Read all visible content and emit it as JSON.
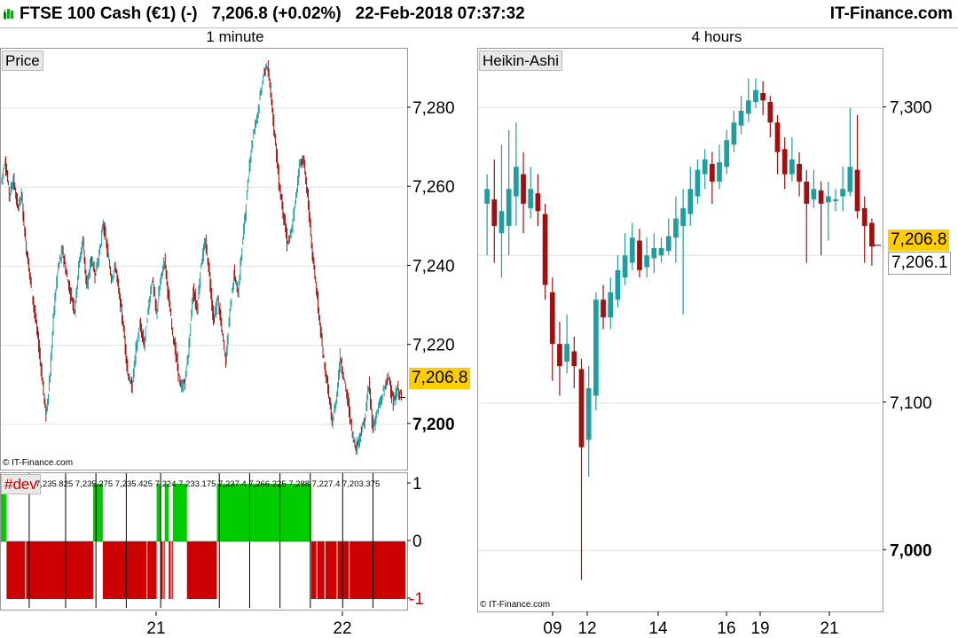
{
  "header": {
    "title": "FTSE 100 Cash (€1) (-)   7,206.8 (+0.02%)   22-Feb-2018 07:37:32",
    "brand": "IT-Finance.com"
  },
  "colors": {
    "up": "#1e9e9e",
    "down": "#a01010",
    "dev_up": "#00cc00",
    "dev_down": "#cc0000",
    "last_price": "#ffcc00"
  },
  "left_panel": {
    "timeframe": "1 minute",
    "price_label": "Price",
    "last_price": "7,206.8",
    "credit": "© IT-Finance.com",
    "indicator_label": "#dev",
    "indicator_ticks": [
      "1",
      "0",
      "-1"
    ],
    "indicator_values_text": "7,235.825  7,235.275  7,235.425  7,224  7,233.175  7,237.4  7,266.225  7,288  7,227.4  7,203.375"
  },
  "right_panel": {
    "timeframe": "4 hours",
    "chart_label": "Heikin-Ashi",
    "last_price": "7,206.8",
    "prev_price": "7,206.1",
    "credit": "© IT-Finance.com"
  },
  "chart_data": [
    {
      "type": "line",
      "panel": "1 minute",
      "title": "Price",
      "x_tick_labels": [
        "21",
        "22"
      ],
      "y_tick_labels": [
        "7,280",
        "7,260",
        "7,240",
        "7,220",
        "7,200"
      ],
      "ylim": [
        7189,
        7295
      ],
      "grid": true,
      "series": [
        {
          "values": [
            7261,
            7267,
            7258,
            7262,
            7255,
            7258,
            7246,
            7238,
            7230,
            7222,
            7212,
            7202,
            7213,
            7230,
            7240,
            7244,
            7238,
            7233,
            7229,
            7240,
            7247,
            7234,
            7242,
            7238,
            7243,
            7251,
            7244,
            7237,
            7240,
            7232,
            7224,
            7213,
            7209,
            7219,
            7225,
            7220,
            7229,
            7237,
            7228,
            7236,
            7242,
            7232,
            7223,
            7216,
            7209,
            7211,
            7220,
            7234,
            7229,
            7241,
            7246,
            7238,
            7226,
            7232,
            7224,
            7216,
            7229,
            7238,
            7233,
            7245,
            7256,
            7268,
            7275,
            7280,
            7287,
            7291,
            7284,
            7273,
            7261,
            7254,
            7246,
            7248,
            7256,
            7266,
            7267,
            7258,
            7245,
            7236,
            7225,
            7216,
            7209,
            7200,
            7206,
            7217,
            7211,
            7205,
            7197,
            7194,
            7198,
            7201,
            7210,
            7199,
            7203,
            7206,
            7210,
            7212,
            7205,
            7209,
            7207
          ]
        }
      ]
    },
    {
      "type": "bar",
      "panel": "1 minute",
      "title": "#dev",
      "y_tick_labels": [
        "1",
        "0",
        "-1"
      ],
      "ylim": [
        -1,
        1
      ],
      "x_tick_labels": [
        "21",
        "22"
      ],
      "segments": [
        {
          "from": 0.0,
          "to": 0.014,
          "value": 1
        },
        {
          "from": 0.014,
          "to": 0.228,
          "value": -1
        },
        {
          "from": 0.228,
          "to": 0.252,
          "value": 1
        },
        {
          "from": 0.252,
          "to": 0.385,
          "value": -1
        },
        {
          "from": 0.385,
          "to": 0.395,
          "value": 1
        },
        {
          "from": 0.395,
          "to": 0.405,
          "value": -1
        },
        {
          "from": 0.405,
          "to": 0.415,
          "value": 1
        },
        {
          "from": 0.415,
          "to": 0.425,
          "value": -1
        },
        {
          "from": 0.425,
          "to": 0.46,
          "value": 1
        },
        {
          "from": 0.46,
          "to": 0.534,
          "value": -1
        },
        {
          "from": 0.534,
          "to": 0.767,
          "value": 1
        },
        {
          "from": 0.767,
          "to": 1.0,
          "value": -1
        }
      ]
    },
    {
      "type": "bar",
      "panel": "4 hours",
      "title": "Heikin-Ashi",
      "x_tick_labels": [
        "09",
        "12",
        "14",
        "16",
        "19",
        "21"
      ],
      "y_tick_labels": [
        "7,300",
        "7,100",
        "7,000"
      ],
      "ylim": [
        6960,
        7340
      ],
      "grid": true,
      "candles": [
        {
          "o": 7235,
          "c": 7245,
          "h": 7255,
          "l": 7200
        },
        {
          "o": 7238,
          "c": 7220,
          "h": 7265,
          "l": 7195
        },
        {
          "o": 7215,
          "c": 7230,
          "h": 7275,
          "l": 7185
        },
        {
          "o": 7220,
          "c": 7245,
          "h": 7285,
          "l": 7200
        },
        {
          "o": 7240,
          "c": 7260,
          "h": 7290,
          "l": 7220
        },
        {
          "o": 7255,
          "c": 7235,
          "h": 7270,
          "l": 7215
        },
        {
          "o": 7232,
          "c": 7245,
          "h": 7260,
          "l": 7225
        },
        {
          "o": 7242,
          "c": 7230,
          "h": 7255,
          "l": 7220
        },
        {
          "o": 7228,
          "c": 7180,
          "h": 7235,
          "l": 7170
        },
        {
          "o": 7175,
          "c": 7140,
          "h": 7185,
          "l": 7115
        },
        {
          "o": 7140,
          "c": 7125,
          "h": 7155,
          "l": 7105
        },
        {
          "o": 7128,
          "c": 7140,
          "h": 7160,
          "l": 7120
        },
        {
          "o": 7135,
          "c": 7125,
          "h": 7145,
          "l": 7110
        },
        {
          "o": 7123,
          "c": 7070,
          "h": 7130,
          "l": 6980
        },
        {
          "o": 7075,
          "c": 7110,
          "h": 7125,
          "l": 7050
        },
        {
          "o": 7105,
          "c": 7170,
          "h": 7175,
          "l": 7095
        },
        {
          "o": 7170,
          "c": 7158,
          "h": 7180,
          "l": 7150
        },
        {
          "o": 7158,
          "c": 7175,
          "h": 7185,
          "l": 7150
        },
        {
          "o": 7170,
          "c": 7190,
          "h": 7200,
          "l": 7165
        },
        {
          "o": 7185,
          "c": 7200,
          "h": 7215,
          "l": 7180
        },
        {
          "o": 7195,
          "c": 7212,
          "h": 7222,
          "l": 7190
        },
        {
          "o": 7210,
          "c": 7190,
          "h": 7218,
          "l": 7185
        },
        {
          "o": 7192,
          "c": 7200,
          "h": 7212,
          "l": 7185
        },
        {
          "o": 7198,
          "c": 7205,
          "h": 7215,
          "l": 7188
        },
        {
          "o": 7200,
          "c": 7205,
          "h": 7212,
          "l": 7195
        },
        {
          "o": 7203,
          "c": 7213,
          "h": 7225,
          "l": 7200
        },
        {
          "o": 7212,
          "c": 7225,
          "h": 7240,
          "l": 7195
        },
        {
          "o": 7220,
          "c": 7232,
          "h": 7245,
          "l": 7160
        },
        {
          "o": 7228,
          "c": 7245,
          "h": 7260,
          "l": 7220
        },
        {
          "o": 7240,
          "c": 7258,
          "h": 7265,
          "l": 7235
        },
        {
          "o": 7255,
          "c": 7265,
          "h": 7272,
          "l": 7245
        },
        {
          "o": 7262,
          "c": 7250,
          "h": 7270,
          "l": 7235
        },
        {
          "o": 7250,
          "c": 7263,
          "h": 7275,
          "l": 7245
        },
        {
          "o": 7260,
          "c": 7278,
          "h": 7285,
          "l": 7255
        },
        {
          "o": 7275,
          "c": 7290,
          "h": 7298,
          "l": 7270
        },
        {
          "o": 7288,
          "c": 7298,
          "h": 7308,
          "l": 7282
        },
        {
          "o": 7296,
          "c": 7305,
          "h": 7320,
          "l": 7290
        },
        {
          "o": 7304,
          "c": 7312,
          "h": 7320,
          "l": 7300
        },
        {
          "o": 7310,
          "c": 7305,
          "h": 7318,
          "l": 7295
        },
        {
          "o": 7304,
          "c": 7290,
          "h": 7308,
          "l": 7280
        },
        {
          "o": 7290,
          "c": 7270,
          "h": 7295,
          "l": 7255
        },
        {
          "o": 7272,
          "c": 7255,
          "h": 7280,
          "l": 7245
        },
        {
          "o": 7255,
          "c": 7265,
          "h": 7280,
          "l": 7250
        },
        {
          "o": 7262,
          "c": 7250,
          "h": 7270,
          "l": 7240
        },
        {
          "o": 7250,
          "c": 7235,
          "h": 7258,
          "l": 7195
        },
        {
          "o": 7238,
          "c": 7245,
          "h": 7258,
          "l": 7232
        },
        {
          "o": 7244,
          "c": 7235,
          "h": 7250,
          "l": 7200
        },
        {
          "o": 7236,
          "c": 7240,
          "h": 7250,
          "l": 7210
        },
        {
          "o": 7238,
          "c": 7238,
          "h": 7245,
          "l": 7230
        },
        {
          "o": 7240,
          "c": 7245,
          "h": 7260,
          "l": 7230
        },
        {
          "o": 7243,
          "c": 7260,
          "h": 7300,
          "l": 7240
        },
        {
          "o": 7258,
          "c": 7230,
          "h": 7295,
          "l": 7225
        },
        {
          "o": 7232,
          "c": 7220,
          "h": 7240,
          "l": 7195
        },
        {
          "o": 7222,
          "c": 7206,
          "h": 7225,
          "l": 7193
        }
      ]
    }
  ]
}
